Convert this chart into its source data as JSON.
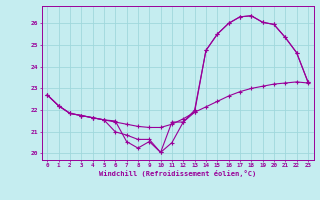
{
  "xlabel": "Windchill (Refroidissement éolien,°C)",
  "background_color": "#c5edf0",
  "line_color": "#990099",
  "grid_color": "#a0d8dc",
  "xlim": [
    -0.5,
    23.5
  ],
  "ylim": [
    19.7,
    26.8
  ],
  "xticks": [
    0,
    1,
    2,
    3,
    4,
    5,
    6,
    7,
    8,
    9,
    10,
    11,
    12,
    13,
    14,
    15,
    16,
    17,
    18,
    19,
    20,
    21,
    22,
    23
  ],
  "yticks": [
    20,
    21,
    22,
    23,
    24,
    25,
    26
  ],
  "curve1_x": [
    0,
    1,
    2,
    3,
    4,
    5,
    6,
    7,
    8,
    9,
    10,
    11,
    12,
    13,
    14,
    15,
    16,
    17,
    18,
    19,
    20,
    21,
    22,
    23
  ],
  "curve1_y": [
    22.7,
    22.2,
    21.85,
    21.75,
    21.65,
    21.55,
    21.45,
    21.35,
    21.25,
    21.2,
    21.2,
    21.35,
    21.6,
    21.9,
    22.15,
    22.4,
    22.65,
    22.85,
    23.0,
    23.1,
    23.2,
    23.25,
    23.3,
    23.25
  ],
  "curve2_x": [
    0,
    1,
    2,
    3,
    4,
    5,
    6,
    7,
    8,
    9,
    10,
    11,
    12,
    13,
    14,
    15,
    16,
    17,
    18,
    19,
    20,
    21,
    22,
    23
  ],
  "curve2_y": [
    22.7,
    22.2,
    21.85,
    21.75,
    21.65,
    21.55,
    21.0,
    20.85,
    20.65,
    20.65,
    20.05,
    20.5,
    21.45,
    22.0,
    24.75,
    25.5,
    26.0,
    26.3,
    26.35,
    26.05,
    25.95,
    25.35,
    24.65,
    23.3
  ],
  "curve3_x": [
    0,
    1,
    2,
    3,
    4,
    5,
    6,
    7,
    8,
    9,
    10,
    11,
    12,
    13,
    14,
    15,
    16,
    17,
    18,
    19,
    20,
    21,
    22,
    23
  ],
  "curve3_y": [
    22.7,
    22.2,
    21.85,
    21.75,
    21.65,
    21.55,
    21.5,
    20.55,
    20.25,
    20.55,
    20.05,
    21.45,
    21.45,
    21.9,
    24.75,
    25.5,
    26.0,
    26.3,
    26.35,
    26.05,
    25.95,
    25.35,
    24.65,
    23.3
  ]
}
